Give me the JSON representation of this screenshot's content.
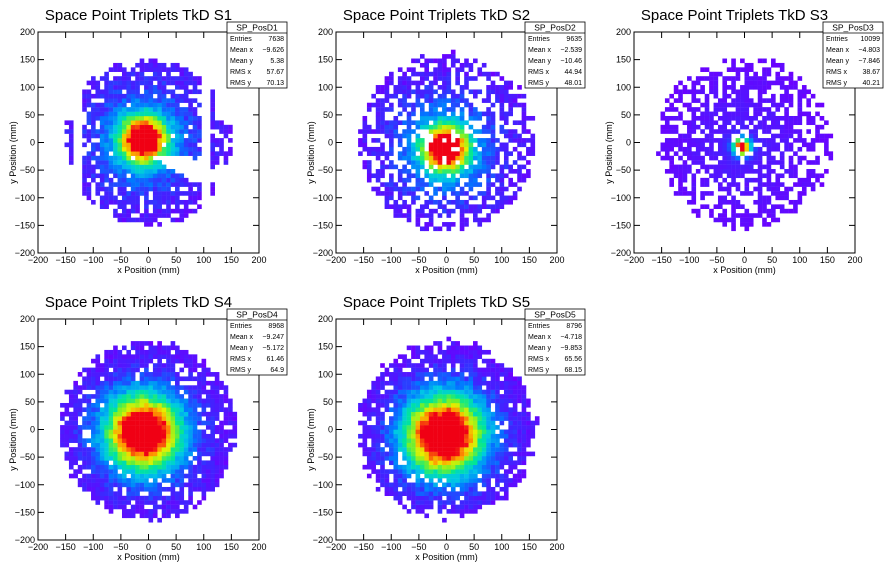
{
  "chart_data": [
    {
      "type": "heatmap",
      "title": "Space Point Triplets TkD S1",
      "xlabel": "x Position (mm)",
      "ylabel": "y Position (mm)",
      "xlim": [
        -200,
        200
      ],
      "ylim": [
        -200,
        200
      ],
      "xticks": [
        "−200",
        "−150",
        "−100",
        "−50",
        "0",
        "50",
        "100",
        "150",
        "200"
      ],
      "yticks": [
        "−200",
        "−150",
        "−100",
        "−50",
        "0",
        "50",
        "100",
        "150",
        "200"
      ],
      "stats": {
        "name": "SP_PosD1",
        "rows": [
          {
            "label": "Entries",
            "value": "7638"
          },
          {
            "label": "Mean x",
            "value": "−9.626"
          },
          {
            "label": "Mean y",
            "value": "5.38"
          },
          {
            "label": "RMS x",
            "value": "57.67"
          },
          {
            "label": "RMS y",
            "value": "70.13"
          }
        ]
      },
      "pattern": {
        "mode": "s1",
        "mean_x": -9.6,
        "mean_y": 5.4,
        "sigma_core": 30,
        "radius": 150,
        "density": 0.92
      }
    },
    {
      "type": "heatmap",
      "title": "Space Point Triplets TkD S2",
      "xlabel": "x Position (mm)",
      "ylabel": "y Position (mm)",
      "xlim": [
        -200,
        200
      ],
      "ylim": [
        -200,
        200
      ],
      "xticks": [
        "−200",
        "−150",
        "−100",
        "−50",
        "0",
        "50",
        "100",
        "150",
        "200"
      ],
      "yticks": [
        "−200",
        "−150",
        "−100",
        "−50",
        "0",
        "50",
        "100",
        "150",
        "200"
      ],
      "stats": {
        "name": "SP_PosD2",
        "rows": [
          {
            "label": "Entries",
            "value": "9635"
          },
          {
            "label": "Mean x",
            "value": "−2.539"
          },
          {
            "label": "Mean y",
            "value": "−10.46"
          },
          {
            "label": "RMS x",
            "value": "44.94"
          },
          {
            "label": "RMS y",
            "value": "48.01"
          }
        ]
      },
      "pattern": {
        "mode": "disc",
        "mean_x": -2.5,
        "mean_y": -10.5,
        "sigma_core": 30,
        "radius": 160,
        "density": 0.72
      }
    },
    {
      "type": "heatmap",
      "title": "Space Point Triplets TkD S3",
      "xlabel": "x Position (mm)",
      "ylabel": "y Position (mm)",
      "xlim": [
        -200,
        200
      ],
      "ylim": [
        -200,
        200
      ],
      "xticks": [
        "−200",
        "−150",
        "−100",
        "−50",
        "0",
        "50",
        "100",
        "150",
        "200"
      ],
      "yticks": [
        "−200",
        "−150",
        "−100",
        "−50",
        "0",
        "50",
        "100",
        "150",
        "200"
      ],
      "stats": {
        "name": "SP_PosD3",
        "rows": [
          {
            "label": "Entries",
            "value": "10099"
          },
          {
            "label": "Mean x",
            "value": "−4.803"
          },
          {
            "label": "Mean y",
            "value": "−7.846"
          },
          {
            "label": "RMS x",
            "value": "38.67"
          },
          {
            "label": "RMS y",
            "value": "40.21"
          }
        ]
      },
      "pattern": {
        "mode": "disc",
        "mean_x": -4.8,
        "mean_y": -7.8,
        "sigma_core": 12,
        "radius": 155,
        "density": 0.7
      }
    },
    {
      "type": "heatmap",
      "title": "Space Point Triplets TkD S4",
      "xlabel": "x Position (mm)",
      "ylabel": "y Position (mm)",
      "xlim": [
        -200,
        200
      ],
      "ylim": [
        -200,
        200
      ],
      "xticks": [
        "−200",
        "−150",
        "−100",
        "−50",
        "0",
        "50",
        "100",
        "150",
        "200"
      ],
      "yticks": [
        "−200",
        "−150",
        "−100",
        "−50",
        "0",
        "50",
        "100",
        "150",
        "200"
      ],
      "stats": {
        "name": "SP_PosD4",
        "rows": [
          {
            "label": "Entries",
            "value": "8968"
          },
          {
            "label": "Mean x",
            "value": "−9.247"
          },
          {
            "label": "Mean y",
            "value": "−5.172"
          },
          {
            "label": "RMS x",
            "value": "61.46"
          },
          {
            "label": "RMS y",
            "value": "64.9"
          }
        ]
      },
      "pattern": {
        "mode": "disc",
        "mean_x": -9.2,
        "mean_y": -5.2,
        "sigma_core": 45,
        "radius": 160,
        "density": 0.97
      }
    },
    {
      "type": "heatmap",
      "title": "Space Point Triplets TkD S5",
      "xlabel": "x Position (mm)",
      "ylabel": "y Position (mm)",
      "xlim": [
        -200,
        200
      ],
      "ylim": [
        -200,
        200
      ],
      "xticks": [
        "−200",
        "−150",
        "−100",
        "−50",
        "0",
        "50",
        "100",
        "150",
        "200"
      ],
      "yticks": [
        "−200",
        "−150",
        "−100",
        "−50",
        "0",
        "50",
        "100",
        "150",
        "200"
      ],
      "stats": {
        "name": "SP_PosD5",
        "rows": [
          {
            "label": "Entries",
            "value": "8796"
          },
          {
            "label": "Mean x",
            "value": "−4.718"
          },
          {
            "label": "Mean y",
            "value": "−9.853"
          },
          {
            "label": "RMS x",
            "value": "65.56"
          },
          {
            "label": "RMS y",
            "value": "68.15"
          }
        ]
      },
      "pattern": {
        "mode": "disc",
        "mean_x": -4.7,
        "mean_y": -9.9,
        "sigma_core": 48,
        "radius": 160,
        "density": 0.97
      }
    }
  ]
}
